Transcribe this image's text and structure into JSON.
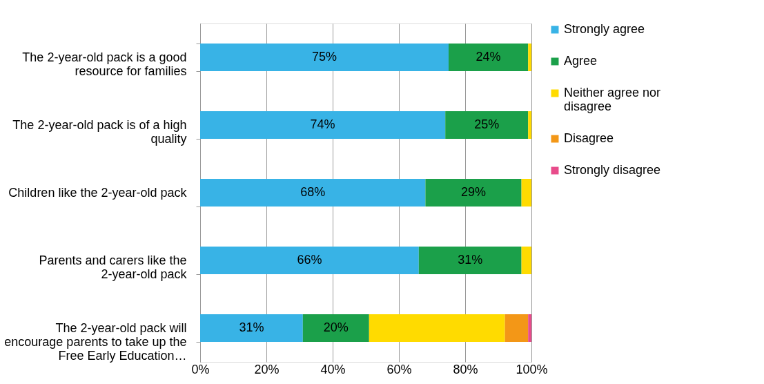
{
  "chart_data": {
    "type": "bar",
    "orientation": "horizontal",
    "stacked": true,
    "categories": [
      "The 2-year-old pack is a good resource for families",
      "The 2-year-old pack is of a high quality",
      "Children like the 2-year-old pack",
      "Parents and carers like the 2-year-old pack",
      "The 2-year-old pack will encourage parents to take up the Free Early Education…"
    ],
    "series": [
      {
        "name": "Strongly agree",
        "color": "#38b3e6",
        "values": [
          75,
          74,
          68,
          66,
          31
        ],
        "value_labels": [
          "75%",
          "74%",
          "68%",
          "66%",
          "31%"
        ]
      },
      {
        "name": "Agree",
        "color": "#1ba04a",
        "values": [
          24,
          25,
          29,
          31,
          20
        ],
        "value_labels": [
          "24%",
          "25%",
          "29%",
          "31%",
          "20%"
        ]
      },
      {
        "name": "Neither agree nor disagree",
        "color": "#ffdb00",
        "values": [
          1,
          1,
          3,
          3,
          41
        ]
      },
      {
        "name": "Disagree",
        "color": "#f39717",
        "values": [
          0,
          0,
          0,
          0,
          7
        ]
      },
      {
        "name": "Strongly disagree",
        "color": "#e84c8b",
        "values": [
          0,
          0,
          0,
          0,
          1
        ]
      }
    ],
    "xlim": [
      0,
      100
    ],
    "xticks": [
      {
        "value": 0,
        "label": "0%"
      },
      {
        "value": 20,
        "label": "20%"
      },
      {
        "value": 40,
        "label": "40%"
      },
      {
        "value": 60,
        "label": "60%"
      },
      {
        "value": 80,
        "label": "80%"
      },
      {
        "value": 100,
        "label": "100%"
      }
    ],
    "grid": "x",
    "legend": "right"
  }
}
